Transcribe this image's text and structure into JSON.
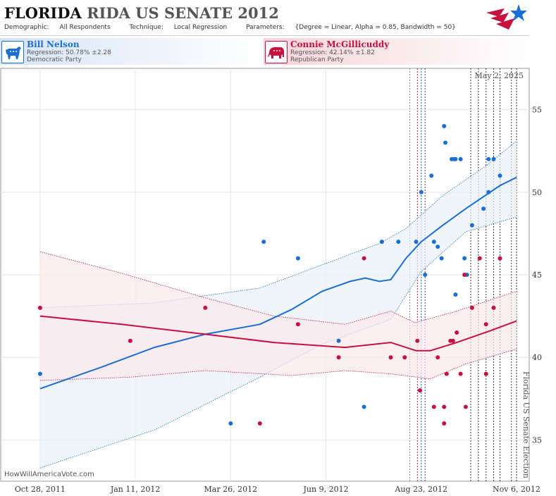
{
  "header": {
    "state": "FLORIDA",
    "race": "RIDA US SENATE 2012",
    "demographic_label": "Demographic:",
    "demographic_value": "All Respondents",
    "technique_label": "Technique:",
    "technique_value": "Local Regression",
    "parameters_label": "Parameters:",
    "parameters_value": "{Degree = Linear, Alpha = 0.85, Bandwidth = 50}"
  },
  "candidates": {
    "dem": {
      "name": "Bill Nelson",
      "regression": "Regression: 50.78% ±2.28",
      "party": "Democratic Party",
      "icon": "donkey-icon"
    },
    "rep": {
      "name": "Connie McGillicuddy",
      "regression": "Regression: 42.14% ±1.82",
      "party": "Republican Party",
      "icon": "elephant-icon"
    }
  },
  "credit": "HowWillAmericaVote.com",
  "colors": {
    "dem": "#1a6fd6",
    "rep": "#c8103e",
    "grid": "#e6e6e6"
  },
  "chart_data": {
    "type": "scatter",
    "date_annotation": "May 2, 2025",
    "election_label": "Florida US Senate Election",
    "x_ticks": [
      "Oct 28, 2011",
      "Jan 11, 2012",
      "Mar 26, 2012",
      "Jun 9, 2012",
      "Aug 23, 2012",
      "Nov 6, 2012"
    ],
    "xlim": [
      "2011-09-27",
      "2012-11-16"
    ],
    "ylim": [
      32.5,
      57.5
    ],
    "y_ticks": [
      35,
      40,
      45,
      50,
      55
    ],
    "grid": true,
    "event_lines": [
      {
        "date": "2012-08-14",
        "color": "#8888aa"
      },
      {
        "date": "2012-08-20",
        "color": "#c8103e"
      },
      {
        "date": "2012-08-23",
        "color": "#1a6fd6"
      },
      {
        "date": "2012-08-26",
        "color": "#6a2a8a"
      },
      {
        "date": "2012-10-01",
        "color": "#333333"
      },
      {
        "date": "2012-10-07",
        "color": "#333333"
      },
      {
        "date": "2012-10-13",
        "color": "#333333"
      },
      {
        "date": "2012-10-19",
        "color": "#333333"
      },
      {
        "date": "2012-10-24",
        "color": "#333333"
      },
      {
        "date": "2012-11-02",
        "color": "#333333"
      },
      {
        "date": "2012-11-06",
        "color": "#333333"
      }
    ],
    "series": [
      {
        "name": "Bill Nelson",
        "points": [
          [
            "2011-10-28",
            39
          ],
          [
            "2012-03-26",
            36
          ],
          [
            "2012-04-21",
            47
          ],
          [
            "2012-05-18",
            46
          ],
          [
            "2012-06-19",
            41
          ],
          [
            "2012-07-09",
            37
          ],
          [
            "2012-07-23",
            47
          ],
          [
            "2012-08-05",
            47
          ],
          [
            "2012-08-23",
            50
          ],
          [
            "2012-08-19",
            47
          ],
          [
            "2012-08-26",
            45
          ],
          [
            "2012-08-31",
            51
          ],
          [
            "2012-09-02",
            47
          ],
          [
            "2012-09-05",
            46.7
          ],
          [
            "2012-09-08",
            46
          ],
          [
            "2012-09-10",
            54
          ],
          [
            "2012-09-11",
            53
          ],
          [
            "2012-09-16",
            52
          ],
          [
            "2012-09-18",
            52
          ],
          [
            "2012-09-19",
            52
          ],
          [
            "2012-09-19",
            43.8
          ],
          [
            "2012-09-23",
            52
          ],
          [
            "2012-09-26",
            46
          ],
          [
            "2012-09-28",
            45
          ],
          [
            "2012-10-02",
            48
          ],
          [
            "2012-10-11",
            49
          ],
          [
            "2012-10-15",
            50
          ],
          [
            "2012-10-15",
            52
          ],
          [
            "2012-10-19",
            52
          ],
          [
            "2012-10-24",
            51
          ]
        ],
        "trend": [
          [
            "2011-10-28",
            38.1
          ],
          [
            "2011-12-15",
            39.4
          ],
          [
            "2012-01-26",
            40.6
          ],
          [
            "2012-03-06",
            41.4
          ],
          [
            "2012-04-18",
            42.0
          ],
          [
            "2012-05-13",
            42.9
          ],
          [
            "2012-06-06",
            44.0
          ],
          [
            "2012-06-28",
            44.6
          ],
          [
            "2012-07-10",
            44.8
          ],
          [
            "2012-07-21",
            44.6
          ],
          [
            "2012-07-30",
            44.7
          ],
          [
            "2012-08-11",
            46.0
          ],
          [
            "2012-08-23",
            47.0
          ],
          [
            "2012-09-09",
            48.0
          ],
          [
            "2012-09-27",
            49.0
          ],
          [
            "2012-10-24",
            50.4
          ],
          [
            "2012-11-06",
            50.9
          ]
        ],
        "upper": [
          [
            "2011-10-28",
            43.0
          ],
          [
            "2012-01-26",
            43.3
          ],
          [
            "2012-04-18",
            44.2
          ],
          [
            "2012-06-06",
            45.6
          ],
          [
            "2012-07-21",
            46.9
          ],
          [
            "2012-08-11",
            47.8
          ],
          [
            "2012-09-09",
            49.8
          ],
          [
            "2012-10-13",
            51.6
          ],
          [
            "2012-11-06",
            53.1
          ]
        ],
        "lower": [
          [
            "2011-10-28",
            33.3
          ],
          [
            "2012-01-26",
            35.6
          ],
          [
            "2012-04-18",
            38.8
          ],
          [
            "2012-06-06",
            40.8
          ],
          [
            "2012-07-30",
            42.3
          ],
          [
            "2012-08-23",
            45.2
          ],
          [
            "2012-09-27",
            47.6
          ],
          [
            "2012-11-06",
            48.5
          ]
        ]
      },
      {
        "name": "Connie McGillicuddy",
        "points": [
          [
            "2011-10-28",
            43
          ],
          [
            "2012-01-07",
            41
          ],
          [
            "2012-03-06",
            43
          ],
          [
            "2012-04-18",
            36
          ],
          [
            "2012-05-18",
            42
          ],
          [
            "2012-06-19",
            40
          ],
          [
            "2012-07-09",
            46
          ],
          [
            "2012-07-30",
            40
          ],
          [
            "2012-08-10",
            40
          ],
          [
            "2012-08-20",
            41
          ],
          [
            "2012-08-22",
            38
          ],
          [
            "2012-09-02",
            37
          ],
          [
            "2012-09-05",
            40
          ],
          [
            "2012-09-10",
            37
          ],
          [
            "2012-09-10",
            36
          ],
          [
            "2012-09-12",
            39
          ],
          [
            "2012-09-15",
            41
          ],
          [
            "2012-09-17",
            41
          ],
          [
            "2012-09-20",
            41.5
          ],
          [
            "2012-09-23",
            39
          ],
          [
            "2012-09-26",
            45
          ],
          [
            "2012-09-27",
            37
          ],
          [
            "2012-10-02",
            43
          ],
          [
            "2012-10-08",
            46
          ],
          [
            "2012-10-13",
            39
          ],
          [
            "2012-10-13",
            42
          ],
          [
            "2012-10-19",
            43
          ],
          [
            "2012-10-24",
            46
          ]
        ],
        "trend": [
          [
            "2011-10-28",
            42.5
          ],
          [
            "2011-12-31",
            42.0
          ],
          [
            "2012-03-06",
            41.4
          ],
          [
            "2012-04-29",
            40.9
          ],
          [
            "2012-06-24",
            40.6
          ],
          [
            "2012-07-30",
            40.9
          ],
          [
            "2012-08-19",
            40.4
          ],
          [
            "2012-08-30",
            40.4
          ],
          [
            "2012-09-20",
            40.9
          ],
          [
            "2012-10-16",
            41.6
          ],
          [
            "2012-11-06",
            42.2
          ]
        ],
        "upper": [
          [
            "2011-10-28",
            46.4
          ],
          [
            "2011-12-31",
            45.1
          ],
          [
            "2012-03-06",
            43.6
          ],
          [
            "2012-04-29",
            42.5
          ],
          [
            "2012-06-24",
            42.0
          ],
          [
            "2012-07-30",
            42.8
          ],
          [
            "2012-08-18",
            42.1
          ],
          [
            "2012-09-20",
            42.8
          ],
          [
            "2012-11-06",
            44.0
          ]
        ],
        "lower": [
          [
            "2011-10-28",
            38.6
          ],
          [
            "2012-01-07",
            38.8
          ],
          [
            "2012-03-06",
            39.2
          ],
          [
            "2012-05-13",
            38.9
          ],
          [
            "2012-06-24",
            39.2
          ],
          [
            "2012-07-30",
            39.0
          ],
          [
            "2012-08-30",
            38.7
          ],
          [
            "2012-09-27",
            39.6
          ],
          [
            "2012-11-06",
            40.5
          ]
        ]
      }
    ]
  }
}
